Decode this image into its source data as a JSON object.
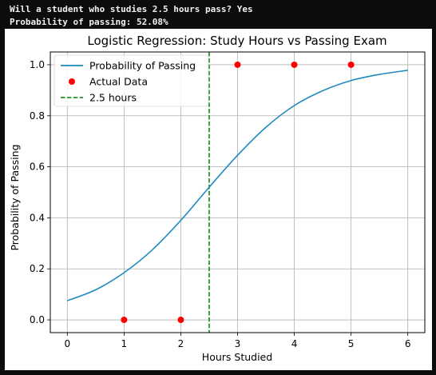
{
  "console": {
    "lines": [
      "Will a student who studies 2.5 hours pass? Yes",
      "Probability of passing: 52.08%"
    ]
  },
  "chart_data": {
    "type": "line",
    "title": "Logistic Regression: Study Hours vs Passing Exam",
    "xlabel": "Hours Studied",
    "ylabel": "Probability of Passing",
    "xlim": [
      -0.3,
      6.3
    ],
    "ylim": [
      -0.05,
      1.05
    ],
    "xticks": [
      0,
      1,
      2,
      3,
      4,
      5,
      6
    ],
    "yticks": [
      0.0,
      0.2,
      0.4,
      0.6,
      0.8,
      1.0
    ],
    "grid": true,
    "legend_position": "top-left",
    "series": [
      {
        "name": "Probability of Passing",
        "kind": "line",
        "color": "#1f8ac0",
        "x": [
          0,
          0.5,
          1,
          1.5,
          2,
          2.5,
          3,
          3.5,
          4,
          4.5,
          5,
          5.5,
          6
        ],
        "y": [
          0.075,
          0.118,
          0.185,
          0.275,
          0.39,
          0.52,
          0.645,
          0.755,
          0.84,
          0.898,
          0.938,
          0.962,
          0.978
        ]
      },
      {
        "name": "Actual Data",
        "kind": "scatter",
        "color": "#ff0000",
        "x": [
          1,
          2,
          3,
          4,
          5
        ],
        "y": [
          0,
          0,
          1,
          1,
          1
        ]
      },
      {
        "name": "2.5 hours",
        "kind": "vline",
        "color": "#008000",
        "x": 2.5
      }
    ]
  }
}
